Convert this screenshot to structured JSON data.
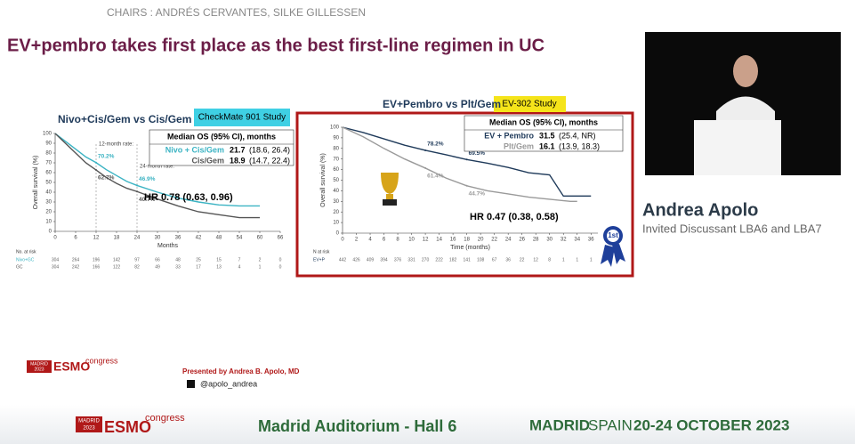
{
  "header": {
    "chairs": "CHAIRS : ANDRÉS CERVANTES, SILKE GILLESSEN"
  },
  "slide": {
    "title": "EV+pembro takes first place as the best first-line regimen in UC",
    "presenter": "Presented by Andrea B. Apolo, MD",
    "handle": "@apolo_andrea",
    "logo": {
      "city": "MADRID",
      "year": "2023",
      "brand": "ESMO",
      "word": "congress"
    },
    "left": {
      "title": "Nivo+Cis/Gem vs Cis/Gem",
      "badge": "CheckMate 901 Study",
      "xlabel": "Months",
      "ylabel": "Overall survival (%)",
      "xlim": [
        0,
        66
      ],
      "xticks": [
        0,
        6,
        12,
        18,
        24,
        30,
        36,
        42,
        48,
        54,
        60,
        66
      ],
      "ylim": [
        0,
        100
      ],
      "yticks": [
        0,
        10,
        20,
        30,
        40,
        50,
        60,
        70,
        80,
        90,
        100
      ],
      "series": [
        {
          "name": "Nivo + Cis/Gem",
          "color": "#3bb3c3",
          "x": [
            0,
            3,
            6,
            9,
            12,
            15,
            18,
            21,
            24,
            30,
            36,
            42,
            48,
            54,
            60
          ],
          "values": [
            100,
            92,
            84,
            76,
            70.2,
            63,
            57,
            51,
            46.9,
            40,
            34,
            30,
            27,
            26,
            26
          ],
          "median": 21.7,
          "ci": "(18.6, 26.4)"
        },
        {
          "name": "Cis/Gem",
          "color": "#555555",
          "x": [
            0,
            3,
            6,
            9,
            12,
            15,
            18,
            21,
            24,
            30,
            36,
            42,
            48,
            54,
            60
          ],
          "values": [
            100,
            90,
            80,
            70,
            62.7,
            55,
            49,
            44,
            40.7,
            33,
            26,
            20,
            17,
            14,
            14
          ],
          "median": 18.9,
          "ci": "(14.7, 22.4)"
        }
      ],
      "table_header": "Median OS (95% CI), months",
      "hr": "HR 0.78 (0.63, 0.96)",
      "rate_titles": [
        {
          "label": "12-month rate:",
          "x": 12
        },
        {
          "label": "24-month rate:",
          "x": 24
        }
      ],
      "rates": [
        {
          "x": 12,
          "value": 70.2,
          "label": "70.2%"
        },
        {
          "x": 12,
          "value": 62.7,
          "label": "62.7%"
        },
        {
          "x": 24,
          "value": 46.9,
          "label": "46.9%"
        },
        {
          "x": 24,
          "value": 40.7,
          "label": "40.7%"
        }
      ],
      "at_risk_label": "No. at risk",
      "at_risk": [
        {
          "name": "Nivo+GC",
          "counts": [
            304,
            264,
            196,
            142,
            97,
            66,
            48,
            25,
            15,
            7,
            2,
            0
          ]
        },
        {
          "name": "GC",
          "counts": [
            304,
            242,
            166,
            122,
            82,
            49,
            33,
            17,
            13,
            4,
            1,
            0
          ]
        }
      ]
    },
    "right": {
      "title": "EV+Pembro vs Plt/Gem",
      "badge": "EV-302 Study",
      "xlabel": "Time (months)",
      "ylabel": "Overall survival (%)",
      "xlim": [
        0,
        37
      ],
      "xticks": [
        0,
        2,
        4,
        6,
        8,
        10,
        12,
        14,
        16,
        18,
        20,
        22,
        24,
        26,
        28,
        30,
        32,
        34,
        36
      ],
      "ylim": [
        0,
        100
      ],
      "yticks": [
        0,
        10,
        20,
        30,
        40,
        50,
        60,
        70,
        80,
        90,
        100
      ],
      "series": [
        {
          "name": "EV + Pembro",
          "color": "#1f3a5a",
          "x": [
            0,
            3,
            6,
            9,
            12,
            15,
            18,
            21,
            24,
            27,
            30,
            32,
            36
          ],
          "values": [
            100,
            95,
            89,
            83,
            78.2,
            74,
            69.5,
            66,
            62,
            57,
            55,
            35,
            35
          ],
          "median": 31.5,
          "ci": "(25.4, NR)"
        },
        {
          "name": "Plt/Gem",
          "color": "#9a9a9a",
          "x": [
            0,
            3,
            6,
            9,
            12,
            15,
            18,
            21,
            24,
            27,
            30,
            33,
            34
          ],
          "values": [
            100,
            91,
            80,
            70,
            61.4,
            52,
            44.7,
            40,
            37,
            34,
            32,
            30,
            30
          ],
          "median": 16.1,
          "ci": "(13.9, 18.3)"
        }
      ],
      "table_header": "Median OS (95% CI), months",
      "hr": "HR 0.47 (0.38, 0.58)",
      "rates": [
        {
          "x": 12,
          "value": 78.2,
          "label": "78.2%"
        },
        {
          "x": 12,
          "value": 61.4,
          "label": "61.4%"
        },
        {
          "x": 18,
          "value": 69.5,
          "label": "69.5%"
        },
        {
          "x": 18,
          "value": 44.7,
          "label": "44.7%"
        }
      ],
      "at_risk_label": "N at risk",
      "at_risk": [
        {
          "name": "EV+P",
          "counts": [
            442,
            426,
            409,
            394,
            376,
            331,
            270,
            222,
            182,
            141,
            108,
            67,
            36,
            22,
            12,
            8,
            1,
            1,
            1
          ]
        }
      ],
      "rank": "1st"
    }
  },
  "speaker": {
    "name": "Andrea Apolo",
    "role": "Invited Discussant LBA6 and LBA7"
  },
  "footer": {
    "venue": "Madrid Auditorium - Hall 6",
    "city": "MADRID",
    "country": "SPAIN",
    "dates": "20-24 OCTOBER 2023"
  }
}
